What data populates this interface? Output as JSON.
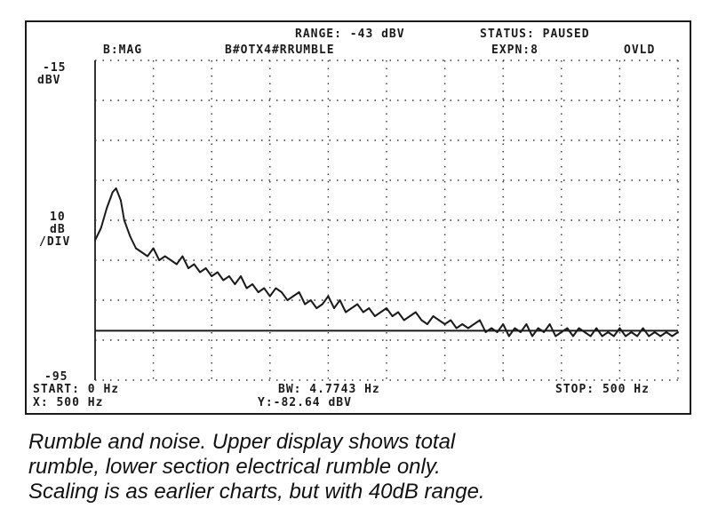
{
  "header": {
    "range": "RANGE: -43 dBV",
    "status": "STATUS: PAUSED",
    "trace": "B:MAG",
    "label": "B#OTX4#RRUMBLE",
    "expn": "EXPN:8",
    "ovld": "OVLD"
  },
  "yaxis": {
    "top_value": "-15",
    "top_unit": "dBV",
    "scale_1": "10",
    "scale_2": "dB",
    "scale_3": "/DIV",
    "bottom_value": "-95"
  },
  "footer": {
    "start": "START: 0 Hz",
    "bw": "BW: 4.7743 Hz",
    "stop": "STOP: 500 Hz",
    "x_readout": "X: 500 Hz",
    "y_readout": "Y:-82.64 dBV"
  },
  "caption": {
    "line1": "Rumble and noise. Upper display shows total",
    "line2": "rumble, lower section electrical rumble only.",
    "line3": "Scaling is as earlier charts, but with 40dB range."
  },
  "colors": {
    "trace": "#1a1a1a",
    "grid": "#333333"
  },
  "chart_data": {
    "type": "line",
    "title": "",
    "xlabel": "",
    "ylabel": "",
    "xlim": [
      0,
      500
    ],
    "ylim": [
      -95,
      -15
    ],
    "grid": true,
    "marker_line_y": -82.64,
    "series": [
      {
        "x": [
          0,
          5,
          10,
          15,
          18,
          22,
          25,
          30,
          35,
          40,
          45,
          50,
          55,
          60,
          65,
          70,
          75,
          80,
          85,
          90,
          95,
          100,
          105,
          110,
          115,
          120,
          125,
          130,
          135,
          140,
          145,
          150,
          155,
          160,
          165,
          170,
          175,
          180,
          185,
          190,
          195,
          200,
          205,
          210,
          215,
          220,
          225,
          230,
          235,
          240,
          245,
          250,
          255,
          260,
          265,
          270,
          275,
          280,
          285,
          290,
          295,
          300,
          305,
          310,
          315,
          320,
          325,
          330,
          335,
          340,
          345,
          350,
          355,
          360,
          365,
          370,
          375,
          380,
          385,
          390,
          395,
          400,
          405,
          410,
          415,
          420,
          425,
          430,
          435,
          440,
          445,
          450,
          455,
          460,
          465,
          470,
          475,
          480,
          485,
          490,
          495,
          500
        ],
        "values": [
          -60,
          -57,
          -52,
          -48,
          -47,
          -50,
          -55,
          -59,
          -62,
          -63,
          -64,
          -62,
          -65,
          -64,
          -65,
          -66,
          -64,
          -67,
          -66,
          -68,
          -67,
          -69,
          -68,
          -70,
          -69,
          -71,
          -69,
          -72,
          -71,
          -73,
          -72,
          -74,
          -72,
          -73,
          -75,
          -74,
          -73,
          -76,
          -75,
          -77,
          -76,
          -74,
          -77,
          -75,
          -78,
          -77,
          -76,
          -78,
          -77,
          -79,
          -78,
          -77,
          -79,
          -78,
          -80,
          -79,
          -78,
          -80,
          -81,
          -79,
          -80,
          -81,
          -80,
          -82,
          -81,
          -82,
          -81,
          -80,
          -83,
          -82,
          -83,
          -81,
          -84,
          -82,
          -83,
          -81,
          -84,
          -82,
          -83,
          -81,
          -84,
          -83,
          -82,
          -84,
          -82,
          -83,
          -84,
          -82,
          -84,
          -83,
          -84,
          -82,
          -84,
          -83,
          -84,
          -82,
          -84,
          -83,
          -84,
          -83,
          -84,
          -83
        ]
      }
    ]
  }
}
